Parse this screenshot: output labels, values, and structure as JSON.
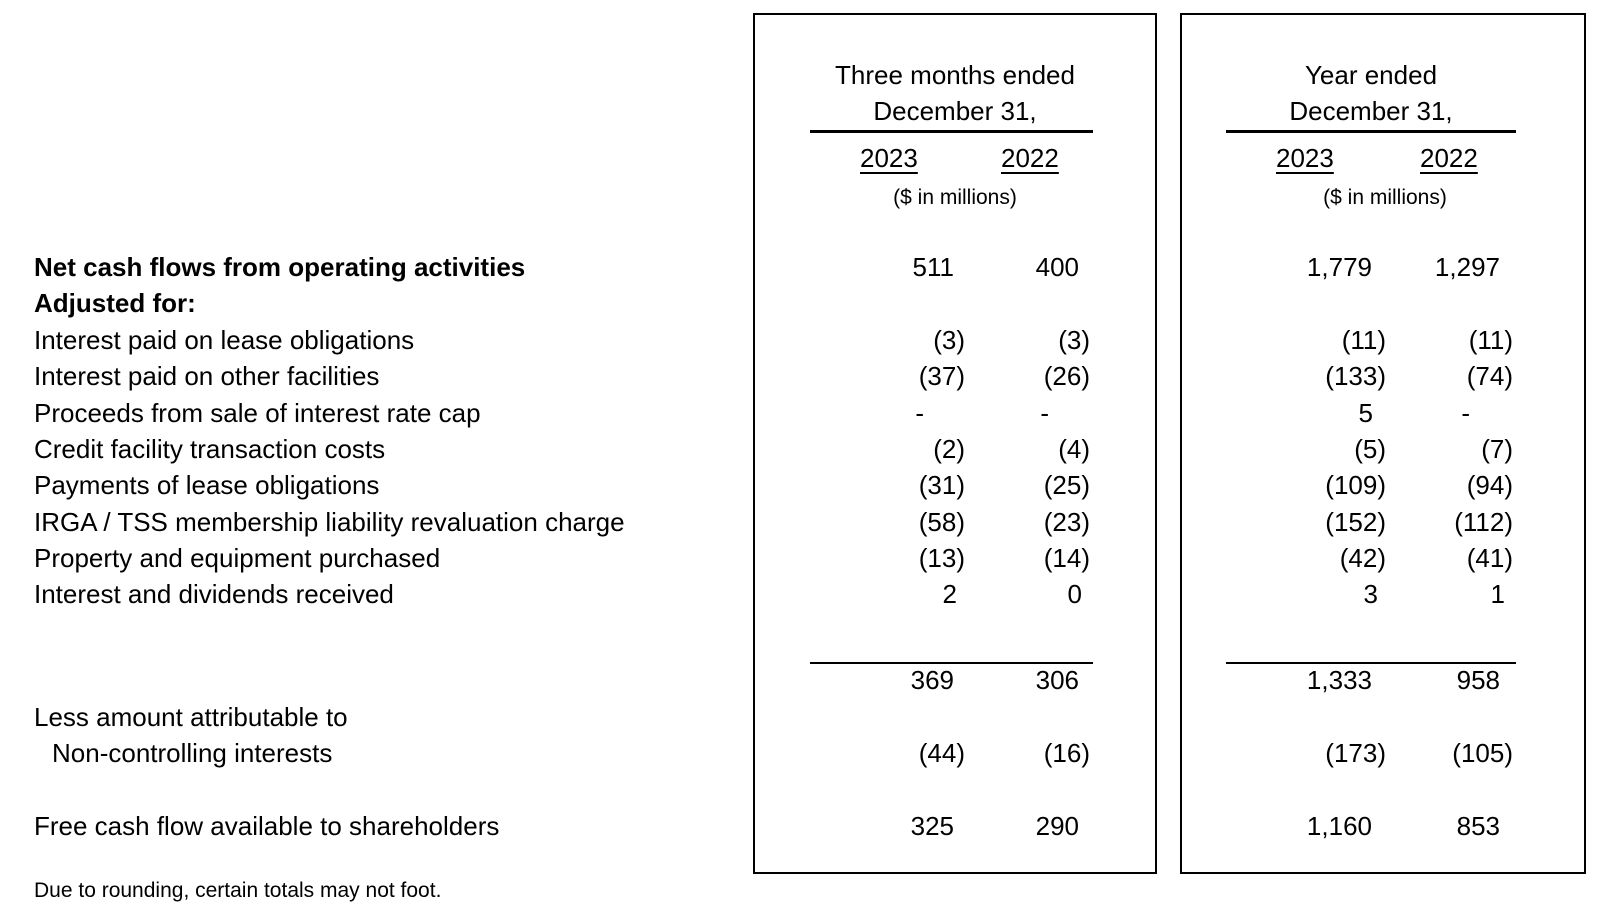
{
  "headers": {
    "quarter": {
      "line1": "Three months ended",
      "line2": "December 31,",
      "year_a": "2023",
      "year_b": "2022",
      "units": "($ in millions)"
    },
    "annual": {
      "line1": "Year ended",
      "line2": "December 31,",
      "year_a": "2023",
      "year_b": "2022",
      "units": "($ in millions)"
    }
  },
  "rows": [
    {
      "label": "Net cash flows from operating activities",
      "q2023": "511",
      "q2022": "400",
      "y2023": "1,779",
      "y2022": "1,297"
    },
    {
      "label": "Adjusted for:"
    },
    {
      "label": "Interest paid on lease obligations",
      "q2023": "(3)",
      "q2022": "(3)",
      "y2023": "(11)",
      "y2022": "(11)"
    },
    {
      "label": "Interest paid on other facilities",
      "q2023": "(37)",
      "q2022": "(26)",
      "y2023": "(133)",
      "y2022": "(74)"
    },
    {
      "label": "Proceeds from sale of interest rate cap",
      "q2023": "-",
      "q2022": "-",
      "y2023": "5",
      "y2022": "-"
    },
    {
      "label": "Credit facility transaction costs",
      "q2023": "(2)",
      "q2022": "(4)",
      "y2023": "(5)",
      "y2022": "(7)"
    },
    {
      "label": "Payments of lease obligations",
      "q2023": "(31)",
      "q2022": "(25)",
      "y2023": "(109)",
      "y2022": "(94)"
    },
    {
      "label": "IRGA / TSS membership liability revaluation charge",
      "q2023": "(58)",
      "q2022": "(23)",
      "y2023": "(152)",
      "y2022": "(112)"
    },
    {
      "label": "Property and equipment purchased",
      "q2023": "(13)",
      "q2022": "(14)",
      "y2023": "(42)",
      "y2022": "(41)"
    },
    {
      "label": "Interest and dividends received",
      "q2023": "2",
      "q2022": "0",
      "y2023": "3",
      "y2022": "1"
    }
  ],
  "subtotal": {
    "q2023": "369",
    "q2022": "306",
    "y2023": "1,333",
    "y2022": "958"
  },
  "nci": {
    "label_line1": "Less amount attributable to",
    "label_line2": "Non-controlling interests",
    "q2023": "(44)",
    "q2022": "(16)",
    "y2023": "(173)",
    "y2022": "(105)"
  },
  "fcf": {
    "label": "Free cash flow available to shareholders",
    "q2023": "325",
    "q2022": "290",
    "y2023": "1,160",
    "y2022": "853"
  },
  "footnote": "Due to rounding, certain totals may not foot."
}
